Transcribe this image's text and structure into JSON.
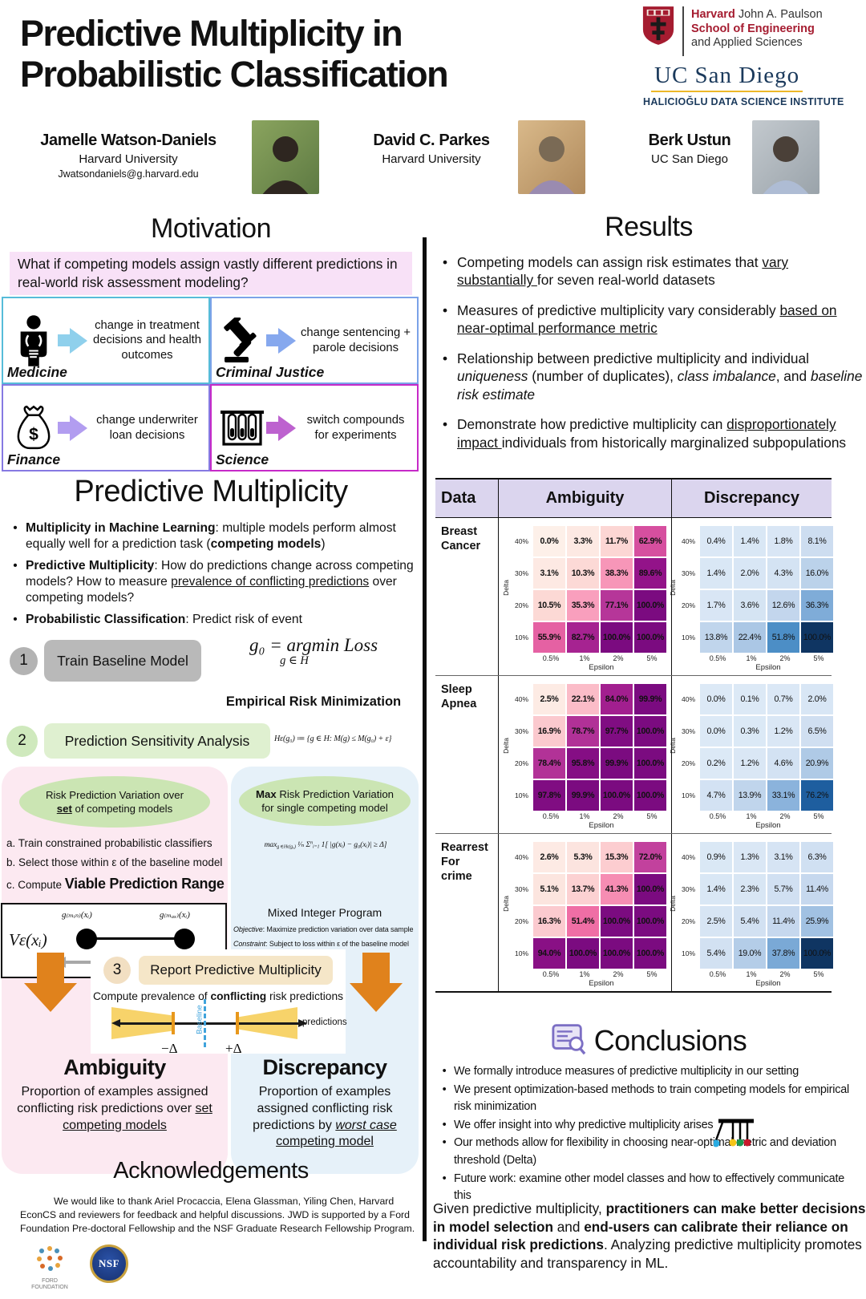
{
  "header": {
    "title_line1": "Predictive Multiplicity in",
    "title_line2": "Probabilistic Classification",
    "harvard": {
      "l1b": "Harvard",
      "l1r": " John A. Paulson",
      "l2": "School of Engineering",
      "l3": "and Applied Sciences"
    },
    "ucsd": "UC San Diego",
    "hdsi": "HALICIOĞLU DATA SCIENCE INSTITUTE",
    "authors": [
      {
        "name": "Jamelle Watson-Daniels",
        "affiliation": "Harvard University",
        "email": "Jwatsondaniels@g.harvard.edu"
      },
      {
        "name": "David C. Parkes",
        "affiliation": "Harvard University",
        "email": ""
      },
      {
        "name": "Berk Ustun",
        "affiliation": "UC San Diego",
        "email": ""
      }
    ]
  },
  "motivation": {
    "heading": "Motivation",
    "question": "What if competing models assign vastly different predictions in real-world risk assessment modeling?",
    "cells": [
      {
        "id": "medicine",
        "label": "Medicine",
        "text": "change in treatment decisions and health outcomes",
        "icon": "human-body-icon",
        "border_color": "#56bcd9",
        "arrow_color": "#8fd0ec"
      },
      {
        "id": "criminal-justice",
        "label": "Criminal Justice",
        "text": "change sentencing + parole decisions",
        "icon": "gavel-icon",
        "border_color": "#7ba2e8",
        "arrow_color": "#86a8ee"
      },
      {
        "id": "finance",
        "label": "Finance",
        "text": "change underwriter loan decisions",
        "icon": "money-bag-icon",
        "border_color": "#8679e2",
        "arrow_color": "#b29df0"
      },
      {
        "id": "science",
        "label": "Science",
        "text": "switch compounds for experiments",
        "icon": "test-tubes-icon",
        "border_color": "#c62ac8",
        "arrow_color": "#bd62cf"
      }
    ]
  },
  "results": {
    "heading": "Results",
    "bullets": [
      [
        {
          "t": "Competing models can assign risk estimates that "
        },
        {
          "t": "vary substantially ",
          "u": 1
        },
        {
          "t": "for seven real-world datasets"
        }
      ],
      [
        {
          "t": "Measures of predictive multiplicity vary considerably "
        },
        {
          "t": "based on near-optimal performance metric",
          "u": 1
        }
      ],
      [
        {
          "t": "Relationship between predictive multiplicity and individual "
        },
        {
          "t": "uniqueness",
          "i": 1
        },
        {
          "t": " (number of duplicates), "
        },
        {
          "t": "class imbalance",
          "i": 1
        },
        {
          "t": ", and "
        },
        {
          "t": "baseline risk estimate",
          "i": 1
        }
      ],
      [
        {
          "t": "Demonstrate how predictive multiplicity can "
        },
        {
          "t": "disproportionately impact ",
          "u": 1
        },
        {
          "t": "individuals from historically marginalized subpopulations"
        }
      ]
    ]
  },
  "pm": {
    "heading": "Predictive Multiplicity",
    "bullets": [
      [
        {
          "t": "Multiplicity in Machine Learning",
          "b": 1
        },
        {
          "t": ": multiple models perform almost equally well for a prediction task ("
        },
        {
          "t": "competing models",
          "b": 1
        },
        {
          "t": ")"
        }
      ],
      [
        {
          "t": "Predictive Multiplicity",
          "b": 1
        },
        {
          "t": ": How do predictions change across competing models? How to measure "
        },
        {
          "t": "prevalence of conflicting predictions",
          "u": 1
        },
        {
          "t": " over competing models?"
        }
      ],
      [
        {
          "t": "Probabilistic Classification",
          "b": 1
        },
        {
          "t": ": Predict risk of event"
        }
      ]
    ],
    "step1": {
      "num": "1",
      "label": "Train Baseline Model",
      "f_main": "g₀ = argmin Loss",
      "f_sub": "g ∈ H",
      "caption": "Empirical Risk Minimization"
    },
    "step2": {
      "num": "2",
      "label": "Prediction Sensitivity Analysis",
      "formula": "Hε(g₀) ≔ {g ∈ H:  M(g)  ≤  M(g₀) + ε}"
    },
    "left": {
      "ellipse_l1": "Risk Prediction Variation over",
      "ellipse_l2": [
        {
          "t": "set",
          "b": 1,
          "u": 1
        },
        {
          "t": " of competing models"
        }
      ],
      "item_a": "a.  Train constrained probabilistic classifiers",
      "item_b": "b.  Select those within ε of the baseline model",
      "item_c": [
        {
          "t": "c.  Compute "
        },
        {
          "t": "Viable Prediction Range",
          "b": 1,
          "big": 1
        }
      ],
      "diagram": {
        "v": "Vε(xᵢ)",
        "gmin": "g₍ₘᵢₙ₎(xᵢ)",
        "gmax": "g₍ₘₐₓ₎(xᵢ)"
      }
    },
    "right": {
      "ellipse_l1": [
        {
          "t": "Max",
          "b": 1
        },
        {
          "t": " Risk Prediction Variation"
        }
      ],
      "ellipse_l2": "for single competing model",
      "formula": [
        {
          "t": "max",
          "i": 1
        },
        {
          "t": "g ∈Hε(g₀)",
          "sub": 1,
          "i": 1
        },
        {
          "t": " ¹⁄ₙ ",
          "i": 1
        },
        {
          "t": "Σ"
        },
        {
          "t": "n",
          "sup": 1,
          "i": 1
        },
        {
          "t": "i=1",
          "sub": 1,
          "i": 1
        },
        {
          "t": " 1[ |g(xᵢ) − g₀(xᵢ)|  ≥  Δ]",
          "i": 1
        }
      ],
      "mip": "Mixed Integer Program",
      "objective": [
        {
          "t": "Objective",
          "i": 1
        },
        {
          "t": ": Maximize prediction variation over data sample"
        }
      ],
      "constraint": [
        {
          "t": "Constraint",
          "i": 1
        },
        {
          "t": ": Subject to loss within ε of the baseline model"
        }
      ]
    },
    "step3": {
      "num": "3",
      "label": "Report Predictive Multiplicity",
      "caption": [
        {
          "t": "Compute prevalence of "
        },
        {
          "t": "conflicting",
          "b": 1
        },
        {
          "t": " risk predictions"
        }
      ],
      "diagram": {
        "baseline": "Baseline",
        "minus": "−Δ",
        "plus": "+Δ",
        "predictions": "predictions"
      }
    },
    "ambiguity": {
      "title": "Ambiguity",
      "desc": [
        {
          "t": "Proportion of examples assigned conflicting risk predictions over "
        },
        {
          "t": "set competing models",
          "u": 1
        }
      ]
    },
    "discrepancy": {
      "title": "Discrepancy",
      "desc": [
        {
          "t": "Proportion of examples assigned conflicting risk predictions by "
        },
        {
          "t": "worst case",
          "i": 1,
          "u": 1
        },
        {
          "t": " competing model",
          "u": 1
        }
      ]
    }
  },
  "table": {
    "headers": [
      "Data",
      "Ambiguity",
      "Discrepancy"
    ]
  },
  "chart_data": {
    "type": "heatmap",
    "xlabel": "Epsilon",
    "ylabel": "Delta",
    "epsilon_labels": [
      "0.5%",
      "1%",
      "2%",
      "5%"
    ],
    "delta_labels": [
      "40%",
      "30%",
      "20%",
      "10%"
    ],
    "ambiguity_colormap": [
      [
        0,
        "#fdf0e9"
      ],
      [
        10,
        "#fcdad6"
      ],
      [
        22,
        "#fbbcc8"
      ],
      [
        35,
        "#f9a0bd"
      ],
      [
        50,
        "#f272a6"
      ],
      [
        62,
        "#d8509f"
      ],
      [
        75,
        "#bc3d9c"
      ],
      [
        87,
        "#99158b"
      ],
      [
        100,
        "#7b0b80"
      ]
    ],
    "discrepancy_colormap": [
      [
        0,
        "#dce9f6"
      ],
      [
        10,
        "#c9daef"
      ],
      [
        20,
        "#b2cce7"
      ],
      [
        32,
        "#8fb5dd"
      ],
      [
        45,
        "#5f9bcd"
      ],
      [
        58,
        "#3b83c0"
      ],
      [
        72,
        "#2268ab"
      ],
      [
        85,
        "#154a87"
      ],
      [
        100,
        "#0f3562"
      ]
    ],
    "datasets": [
      {
        "name_lines": [
          "Breast",
          "Cancer"
        ],
        "ambiguity": [
          [
            0.0,
            3.3,
            11.7,
            62.9
          ],
          [
            3.1,
            10.3,
            38.3,
            89.6
          ],
          [
            10.5,
            35.3,
            77.1,
            100.0
          ],
          [
            55.9,
            82.7,
            100.0,
            100.0
          ]
        ],
        "discrepancy": [
          [
            0.4,
            1.4,
            1.8,
            8.1
          ],
          [
            1.4,
            2.0,
            4.3,
            16.0
          ],
          [
            1.7,
            3.6,
            12.6,
            36.3
          ],
          [
            13.8,
            22.4,
            51.8,
            100.0
          ]
        ]
      },
      {
        "name_lines": [
          "Sleep",
          "Apnea"
        ],
        "ambiguity": [
          [
            2.5,
            22.1,
            84.0,
            99.9
          ],
          [
            16.9,
            78.7,
            97.7,
            100.0
          ],
          [
            78.4,
            95.8,
            99.9,
            100.0
          ],
          [
            97.8,
            99.9,
            100.0,
            100.0
          ]
        ],
        "discrepancy": [
          [
            0.0,
            0.1,
            0.7,
            2.0
          ],
          [
            0.0,
            0.3,
            1.2,
            6.5
          ],
          [
            0.2,
            1.2,
            4.6,
            20.9
          ],
          [
            4.7,
            13.9,
            33.1,
            76.2
          ]
        ]
      },
      {
        "name_lines": [
          "Rearrest",
          "For",
          "crime"
        ],
        "ambiguity": [
          [
            2.6,
            5.3,
            15.3,
            72.0
          ],
          [
            5.1,
            13.7,
            41.3,
            100.0
          ],
          [
            16.3,
            51.4,
            100.0,
            100.0
          ],
          [
            94.0,
            100.0,
            100.0,
            100.0
          ]
        ],
        "discrepancy": [
          [
            0.9,
            1.3,
            3.1,
            6.3
          ],
          [
            1.4,
            2.3,
            5.7,
            11.4
          ],
          [
            2.5,
            5.4,
            11.4,
            25.9
          ],
          [
            5.4,
            19.0,
            37.8,
            100.0
          ]
        ]
      }
    ]
  },
  "conclusions": {
    "heading": "Conclusions",
    "bullets": [
      "We formally introduce measures of predictive multiplicity in our setting",
      "We present optimization-based methods to train competing models for empirical risk minimization",
      "We offer insight into why predictive multiplicity arises",
      "Our methods allow for flexibility in choosing near-optimal metric and deviation threshold (Delta)",
      "Future work: examine other model classes and how to effectively communicate this"
    ],
    "final": [
      {
        "t": "Given predictive multiplicity, "
      },
      {
        "t": "practitioners can make better decisions in model selection",
        "b": 1
      },
      {
        "t": " and "
      },
      {
        "t": "end-users can calibrate their reliance on individual risk predictions",
        "b": 1
      },
      {
        "t": ". Analyzing predictive multiplicity promotes accountability and transparency in ML."
      }
    ]
  },
  "ack": {
    "heading": "Acknowledgements",
    "text": "We would like to thank Ariel Procaccia, Elena Glassman, Yiling Chen, Harvard EconCS and reviewers for feedback and helpful discussions. JWD is supported by a Ford Foundation Pre-doctoral Fellowship and the NSF Graduate Research Fellowship Program.",
    "ford_label": "FORD FOUNDATION",
    "nsf_label": "NSF"
  }
}
